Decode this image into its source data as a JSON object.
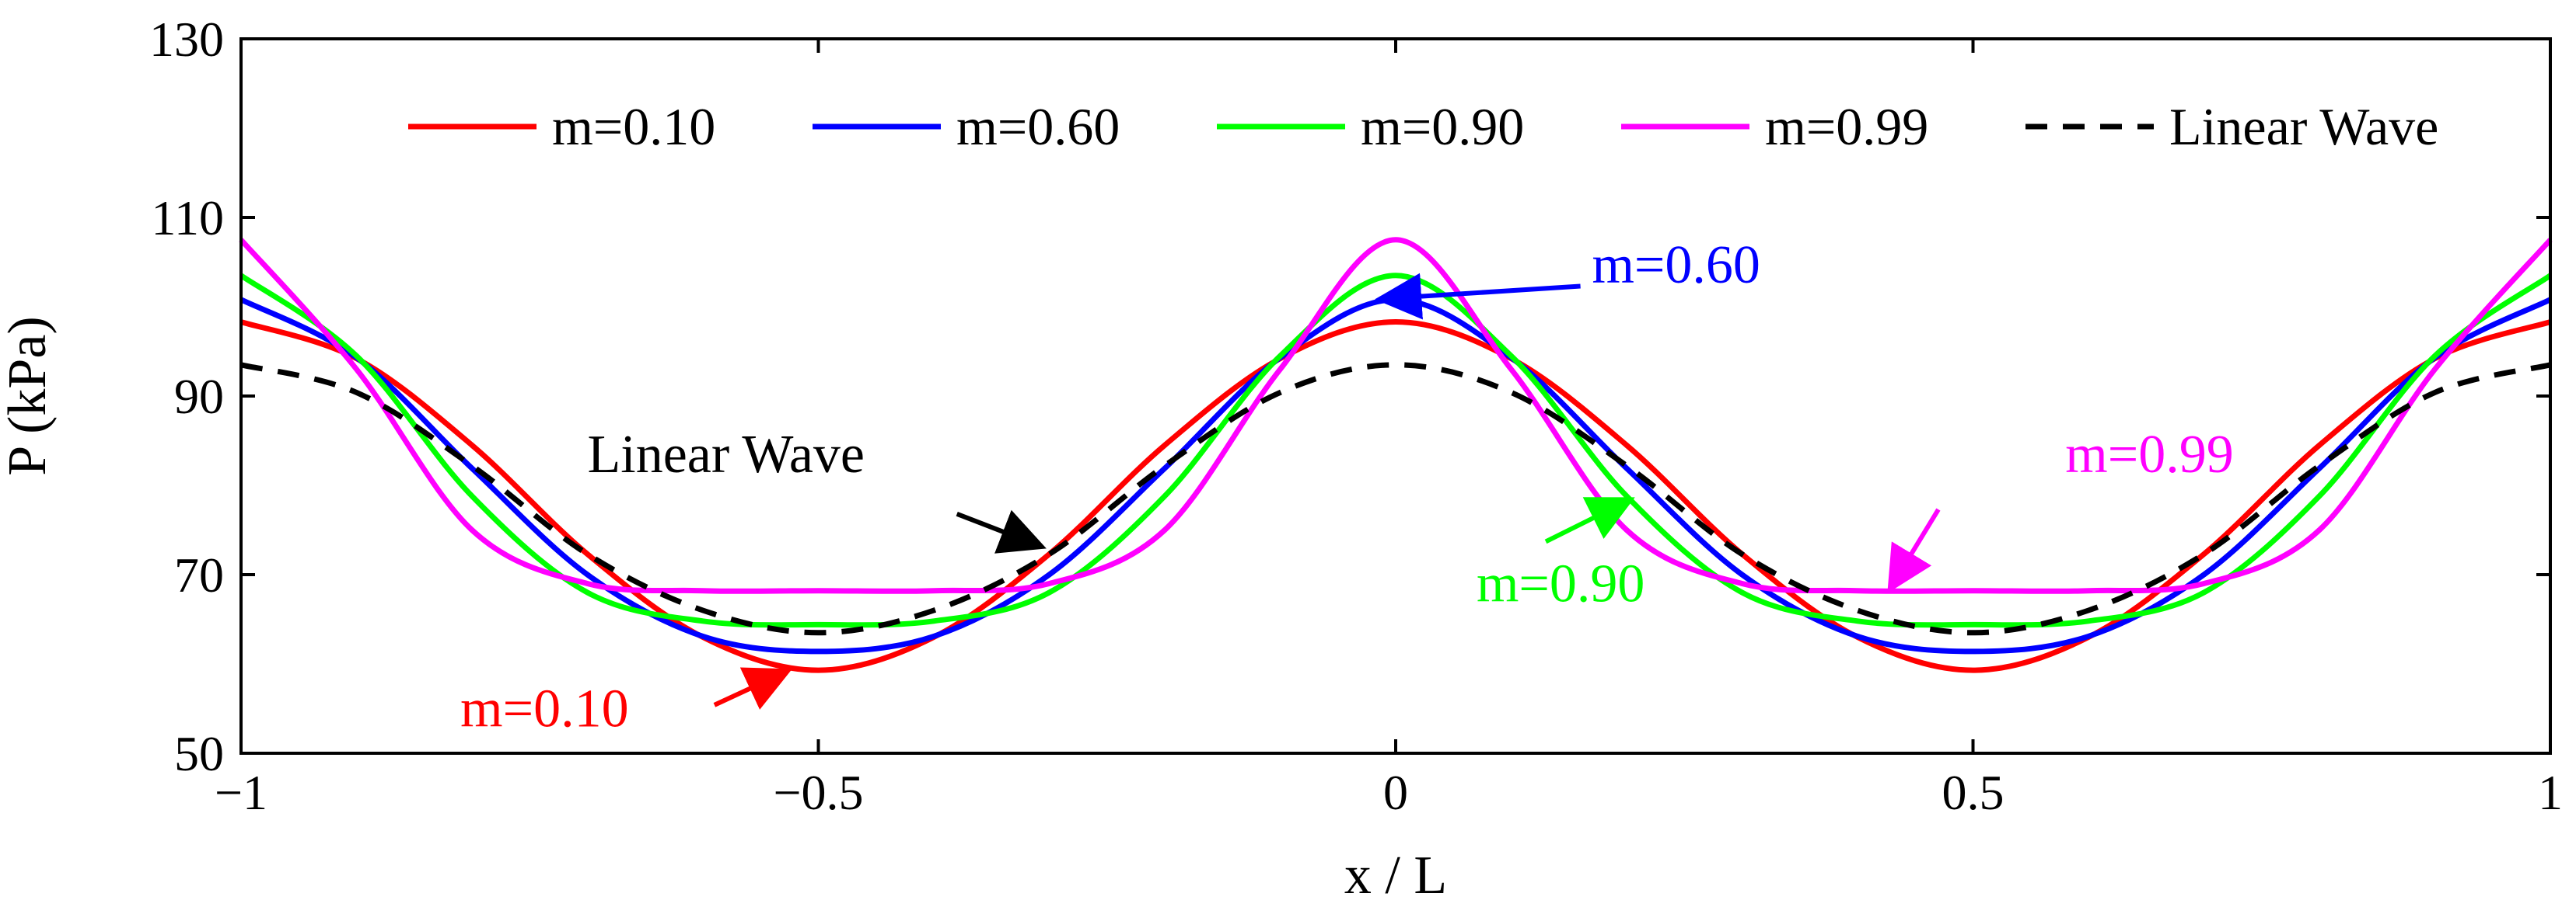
{
  "chart_data": {
    "type": "line",
    "title": "",
    "xlabel": "x / L",
    "ylabel": "P (kPa)",
    "xlim": [
      -1,
      1
    ],
    "ylim": [
      50,
      130
    ],
    "xticks": [
      -1,
      -0.5,
      0,
      0.5,
      1
    ],
    "xtick_labels": [
      "−1",
      "−0.5",
      "0",
      "0.5",
      "1"
    ],
    "yticks": [
      50,
      70,
      90,
      110,
      130
    ],
    "ytick_labels": [
      "50",
      "70",
      "90",
      "110",
      "130"
    ],
    "grid": false,
    "legend_position": "top",
    "x": [
      -1,
      -0.9,
      -0.8,
      -0.7,
      -0.6,
      -0.5,
      -0.4,
      -0.3,
      -0.2,
      -0.1,
      0,
      0.1,
      0.2,
      0.3,
      0.4,
      0.5,
      0.6,
      0.7,
      0.8,
      0.9,
      1
    ],
    "series": [
      {
        "name": "m=0.10",
        "color": "#ff0000",
        "style": "solid",
        "values": [
          98.3,
          94.2,
          84.5,
          72.3,
          63.0,
          59.3,
          63.0,
          72.3,
          84.5,
          94.2,
          98.3,
          94.2,
          84.5,
          72.3,
          63.0,
          59.3,
          63.0,
          72.3,
          84.5,
          94.2,
          98.3
        ]
      },
      {
        "name": "m=0.60",
        "color": "#0000ff",
        "style": "solid",
        "values": [
          100.8,
          94.3,
          81.9,
          70.0,
          63.1,
          61.4,
          63.1,
          70.0,
          81.9,
          94.3,
          100.8,
          94.3,
          81.9,
          70.0,
          63.1,
          61.4,
          63.1,
          70.0,
          81.9,
          94.3,
          100.8
        ]
      },
      {
        "name": "m=0.90",
        "color": "#00ff00",
        "style": "solid",
        "values": [
          103.5,
          94.5,
          78.8,
          68.0,
          64.8,
          64.4,
          64.8,
          68.0,
          78.8,
          94.5,
          103.5,
          94.5,
          78.8,
          68.0,
          64.8,
          64.4,
          64.8,
          68.0,
          78.8,
          94.5,
          103.5
        ]
      },
      {
        "name": "m=0.99",
        "color": "#ff00ff",
        "style": "solid",
        "values": [
          107.5,
          93.0,
          75.0,
          69.0,
          68.2,
          68.2,
          68.2,
          69.0,
          75.0,
          93.0,
          107.5,
          93.0,
          75.0,
          69.0,
          68.2,
          68.2,
          68.2,
          69.0,
          75.0,
          93.0,
          107.5
        ]
      },
      {
        "name": "Linear Wave",
        "color": "#000000",
        "style": "dashed",
        "values": [
          93.5,
          90.4,
          82.2,
          72.3,
          66.0,
          63.5,
          66.0,
          72.3,
          82.2,
          90.4,
          93.5,
          90.4,
          82.2,
          72.3,
          66.0,
          63.5,
          66.0,
          72.3,
          82.2,
          90.4,
          93.5
        ]
      }
    ],
    "annotations": [
      {
        "text": "m=0.60",
        "color": "#0000ff",
        "text_at": [
          0.17,
          102.7
        ],
        "arrow_from": [
          0.16,
          102.3
        ],
        "arrow_to": [
          -0.01,
          100.9
        ]
      },
      {
        "text": "Linear Wave",
        "color": "#000000",
        "text_at": [
          -0.7,
          81.5
        ],
        "arrow_from": [
          -0.38,
          76.8
        ],
        "arrow_to": [
          -0.31,
          73.3
        ]
      },
      {
        "text": "m=0.99",
        "color": "#ff00ff",
        "text_at": [
          0.58,
          81.5
        ],
        "arrow_from": [
          0.47,
          77.3
        ],
        "arrow_to": [
          0.43,
          68.8
        ]
      },
      {
        "text": "m=0.90",
        "color": "#00ff00",
        "text_at": [
          0.07,
          67.0
        ],
        "arrow_from": [
          0.13,
          73.7
        ],
        "arrow_to": [
          0.2,
          78.2
        ]
      },
      {
        "text": "m=0.10",
        "color": "#ff0000",
        "text_at": [
          -0.81,
          53.0
        ],
        "arrow_from": [
          -0.59,
          55.4
        ],
        "arrow_to": [
          -0.53,
          59.0
        ]
      }
    ]
  }
}
